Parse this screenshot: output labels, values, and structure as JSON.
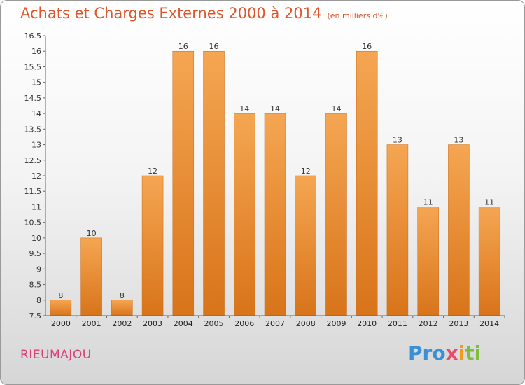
{
  "chart_data": {
    "type": "bar",
    "title": "Achats et Charges Externes 2000 à 2014",
    "subtitle": "(en milliers d'€)",
    "categories": [
      "2000",
      "2001",
      "2002",
      "2003",
      "2004",
      "2005",
      "2006",
      "2007",
      "2008",
      "2009",
      "2010",
      "2011",
      "2012",
      "2013",
      "2014"
    ],
    "values": [
      8,
      10,
      8,
      12,
      16,
      16,
      14,
      14,
      12,
      14,
      16,
      13,
      11,
      13,
      11
    ],
    "ylim": [
      7.5,
      16.5
    ],
    "yticks": [
      "7.5",
      "8",
      "8.5",
      "9",
      "9.5",
      "10",
      "10.5",
      "11",
      "11.5",
      "12",
      "12.5",
      "13",
      "13.5",
      "14",
      "14.5",
      "15",
      "15.5",
      "16",
      "16.5"
    ],
    "xlabel": "",
    "ylabel": "",
    "grid": false,
    "bar_color": "#f09a3e"
  },
  "commune": "RIEUMAJOU",
  "logo": [
    "Pro",
    "x",
    "i",
    "ti"
  ]
}
